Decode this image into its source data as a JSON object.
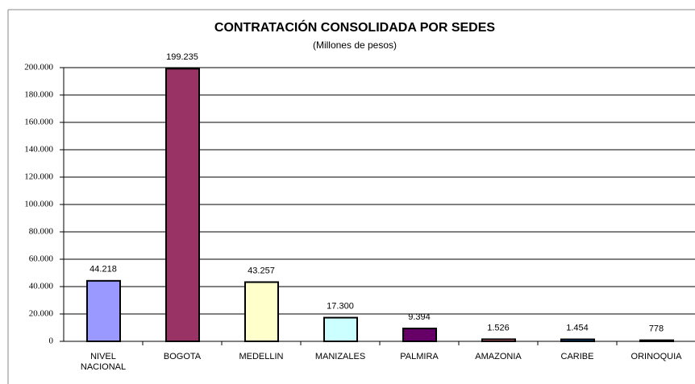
{
  "chart_data": {
    "type": "bar",
    "title": "CONTRATACIÓN CONSOLIDADA POR SEDES",
    "subtitle": "(Millones de pesos)",
    "categories": [
      "NIVEL NACIONAL",
      "BOGOTA",
      "MEDELLIN",
      "MANIZALES",
      "PALMIRA",
      "AMAZONIA",
      "CARIBE",
      "ORINOQUIA"
    ],
    "values": [
      44218,
      199235,
      43257,
      17300,
      9394,
      1526,
      1454,
      778
    ],
    "value_labels": [
      "44.218",
      "199.235",
      "43.257",
      "17.300",
      "9.394",
      "1.526",
      "1.454",
      "778"
    ],
    "colors": [
      "#9999ff",
      "#993366",
      "#ffffcc",
      "#ccffff",
      "#660066",
      "#ff8080",
      "#0066cc",
      "#ccccff"
    ],
    "ylim": [
      0,
      200000
    ],
    "yticks": [
      0,
      {
        "value": 20000,
        "label": "20.000"
      },
      {
        "value": 40000,
        "label": "40.000"
      },
      {
        "value": 60000,
        "label": "60.000"
      },
      {
        "value": 80000,
        "label": "80.000"
      },
      {
        "value": 100000,
        "label": "100.000"
      },
      {
        "value": 120000,
        "label": "120.000"
      },
      {
        "value": 140000,
        "label": "140.000"
      },
      {
        "value": 160000,
        "label": "160.000"
      },
      {
        "value": 180000,
        "label": "180.000"
      },
      {
        "value": 200000,
        "label": "200.000"
      }
    ],
    "grid": true
  }
}
